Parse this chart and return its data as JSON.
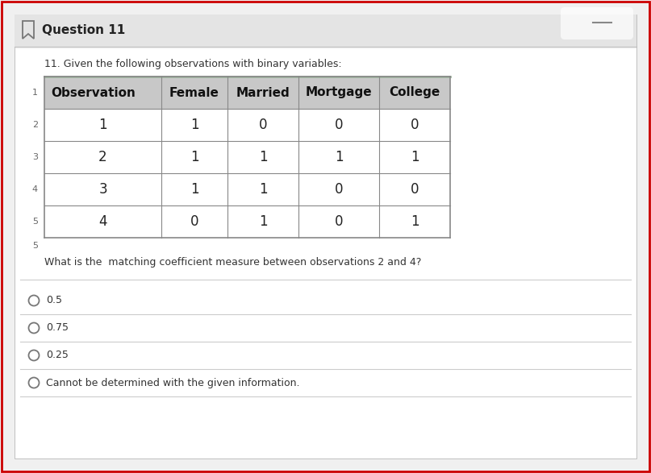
{
  "title": "Question 11",
  "question_text": "11. Given the following observations with binary variables:",
  "table_headers": [
    "Observation",
    "Female",
    "Married",
    "Mortgage",
    "College"
  ],
  "table_data": [
    [
      1,
      1,
      0,
      0,
      0
    ],
    [
      2,
      1,
      1,
      1,
      1
    ],
    [
      3,
      1,
      1,
      0,
      0
    ],
    [
      4,
      0,
      1,
      0,
      1
    ]
  ],
  "row_labels_left": [
    "1",
    "2",
    "3",
    "4",
    "5",
    "5"
  ],
  "question2": "What is the  matching coefficient measure between observations 2 and 4?",
  "options": [
    "0.5",
    "0.75",
    "0.25",
    "Cannot be determined with the given information."
  ],
  "bg_color": "#f0f0f0",
  "white_bg": "#ffffff",
  "header_bar_color": "#e4e4e4",
  "table_header_bg": "#c8c8c8",
  "table_cell_bg": "#ffffff",
  "border_color": "#cc0000",
  "table_line_color": "#888888",
  "sep_line_color": "#cccccc",
  "title_color": "#222222",
  "text_color": "#333333",
  "row_label_color": "#666666"
}
